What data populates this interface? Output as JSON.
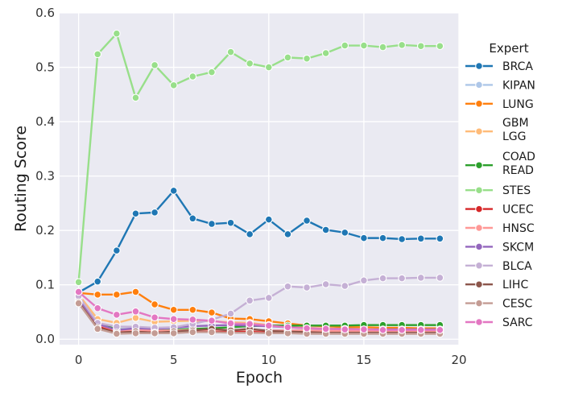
{
  "chart_data": {
    "type": "line",
    "title": "",
    "xlabel": "Epoch",
    "ylabel": "Routing Score",
    "xlim": [
      -1,
      20
    ],
    "ylim": [
      -0.01,
      0.6
    ],
    "xticks": [
      0,
      5,
      10,
      15,
      20
    ],
    "yticks": [
      0.0,
      0.1,
      0.2,
      0.3,
      0.4,
      0.5,
      0.6
    ],
    "xtick_labels": [
      "0",
      "5",
      "10",
      "15",
      "20"
    ],
    "ytick_labels": [
      "0.0",
      "0.1",
      "0.2",
      "0.3",
      "0.4",
      "0.5",
      "0.6"
    ],
    "grid": true,
    "background": "#eaeaf2",
    "legend": {
      "title": "Expert",
      "placement": "right"
    },
    "x": [
      0,
      1,
      2,
      3,
      4,
      5,
      6,
      7,
      8,
      9,
      10,
      11,
      12,
      13,
      14,
      15,
      16,
      17,
      18,
      19
    ],
    "series": [
      {
        "name": "BRCA",
        "label": "BRCA",
        "color": "#1f77b4",
        "values": [
          0.086,
          0.106,
          0.163,
          0.231,
          0.233,
          0.273,
          0.222,
          0.212,
          0.214,
          0.193,
          0.22,
          0.193,
          0.218,
          0.201,
          0.196,
          0.186,
          0.186,
          0.184,
          0.185,
          0.185
        ]
      },
      {
        "name": "KIPAN",
        "label": "KIPAN",
        "color": "#aec7e8",
        "values": [
          0.08,
          0.028,
          0.018,
          0.02,
          0.019,
          0.018,
          0.018,
          0.018,
          0.017,
          0.017,
          0.017,
          0.016,
          0.016,
          0.016,
          0.016,
          0.016,
          0.016,
          0.016,
          0.016,
          0.016
        ]
      },
      {
        "name": "LUNG",
        "label": "LUNG",
        "color": "#ff7f0e",
        "values": [
          0.085,
          0.082,
          0.082,
          0.087,
          0.064,
          0.054,
          0.054,
          0.049,
          0.038,
          0.037,
          0.033,
          0.029,
          0.025,
          0.024,
          0.022,
          0.022,
          0.021,
          0.021,
          0.02,
          0.02
        ]
      },
      {
        "name": "GBM LGG",
        "label": "GBM\nLGG",
        "color": "#ffbb78",
        "values": [
          0.082,
          0.037,
          0.03,
          0.039,
          0.032,
          0.033,
          0.034,
          0.033,
          0.031,
          0.03,
          0.026,
          0.024,
          0.021,
          0.02,
          0.019,
          0.019,
          0.018,
          0.018,
          0.018,
          0.018
        ]
      },
      {
        "name": "COAD READ",
        "label": "COAD\nREAD",
        "color": "#2ca02c",
        "values": [
          0.075,
          0.03,
          0.018,
          0.018,
          0.016,
          0.017,
          0.019,
          0.02,
          0.022,
          0.024,
          0.025,
          0.025,
          0.025,
          0.025,
          0.025,
          0.026,
          0.026,
          0.026,
          0.026,
          0.026
        ]
      },
      {
        "name": "STES",
        "label": "STES",
        "color": "#98df8a",
        "values": [
          0.105,
          0.524,
          0.562,
          0.444,
          0.504,
          0.467,
          0.483,
          0.491,
          0.528,
          0.507,
          0.5,
          0.518,
          0.516,
          0.526,
          0.54,
          0.54,
          0.537,
          0.541,
          0.539,
          0.539
        ]
      },
      {
        "name": "UCEC",
        "label": "UCEC",
        "color": "#d62728",
        "values": [
          0.07,
          0.024,
          0.013,
          0.014,
          0.013,
          0.013,
          0.014,
          0.015,
          0.014,
          0.014,
          0.013,
          0.013,
          0.012,
          0.012,
          0.012,
          0.012,
          0.012,
          0.012,
          0.012,
          0.012
        ]
      },
      {
        "name": "HNSC",
        "label": "HNSC",
        "color": "#ff9896",
        "values": [
          0.072,
          0.027,
          0.016,
          0.017,
          0.016,
          0.016,
          0.017,
          0.017,
          0.017,
          0.017,
          0.016,
          0.016,
          0.016,
          0.015,
          0.015,
          0.015,
          0.015,
          0.015,
          0.015,
          0.015
        ]
      },
      {
        "name": "SKCM",
        "label": "SKCM",
        "color": "#9467bd",
        "values": [
          0.074,
          0.028,
          0.017,
          0.02,
          0.019,
          0.021,
          0.024,
          0.025,
          0.026,
          0.025,
          0.024,
          0.022,
          0.02,
          0.019,
          0.019,
          0.018,
          0.018,
          0.018,
          0.018,
          0.018
        ]
      },
      {
        "name": "BLCA",
        "label": "BLCA",
        "color": "#c5b0d5",
        "values": [
          0.079,
          0.03,
          0.023,
          0.023,
          0.021,
          0.022,
          0.028,
          0.036,
          0.047,
          0.071,
          0.076,
          0.097,
          0.095,
          0.101,
          0.098,
          0.108,
          0.112,
          0.112,
          0.113,
          0.113
        ]
      },
      {
        "name": "LIHC",
        "label": "LIHC",
        "color": "#8c564b",
        "values": [
          0.068,
          0.021,
          0.012,
          0.014,
          0.012,
          0.014,
          0.016,
          0.019,
          0.016,
          0.019,
          0.015,
          0.014,
          0.013,
          0.012,
          0.012,
          0.012,
          0.012,
          0.012,
          0.012,
          0.012
        ]
      },
      {
        "name": "CESC",
        "label": "CESC",
        "color": "#c49c94",
        "values": [
          0.066,
          0.019,
          0.01,
          0.011,
          0.011,
          0.011,
          0.013,
          0.013,
          0.012,
          0.012,
          0.011,
          0.011,
          0.01,
          0.01,
          0.01,
          0.01,
          0.01,
          0.01,
          0.01,
          0.01
        ]
      },
      {
        "name": "SARC",
        "label": "SARC",
        "color": "#e377c2",
        "values": [
          0.087,
          0.057,
          0.045,
          0.051,
          0.04,
          0.037,
          0.036,
          0.034,
          0.029,
          0.028,
          0.025,
          0.022,
          0.02,
          0.019,
          0.018,
          0.018,
          0.017,
          0.017,
          0.017,
          0.017
        ]
      }
    ]
  }
}
